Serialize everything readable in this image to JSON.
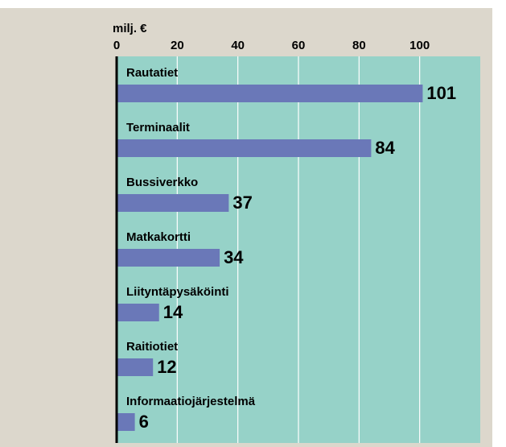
{
  "chart_data": {
    "type": "bar",
    "orientation": "horizontal",
    "axis_label": "milj. €",
    "categories": [
      "Rautatiet",
      "Terminaalit",
      "Bussiverkko",
      "Matkakortti",
      "Liityntäpysäköinti",
      "Raitiotiet",
      "Informaatiojärjestelmä"
    ],
    "values": [
      101,
      84,
      37,
      34,
      14,
      12,
      6
    ],
    "color": "#6a78b8",
    "xlim": [
      0,
      120
    ],
    "xticks": [
      0,
      20,
      40,
      60,
      80,
      100
    ],
    "grid": true
  }
}
